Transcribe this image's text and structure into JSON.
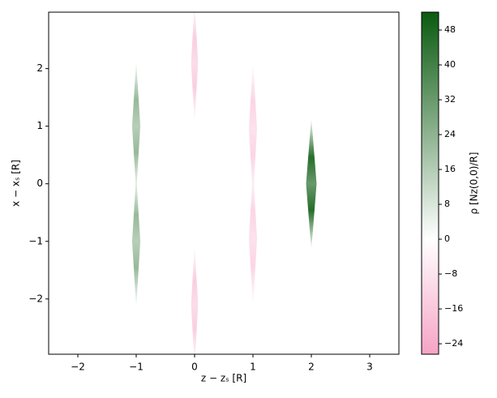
{
  "chart_data": {
    "type": "heatmap",
    "x_label": "z − zₛ [R]",
    "y_label": "x − xₛ [R]",
    "colorbar_label": "ρ [Nz(0,0)/R]",
    "xlim": [
      -2.5,
      3.5
    ],
    "ylim": [
      -2.96,
      2.98
    ],
    "xticks": [
      {
        "value": -2,
        "label": "−2"
      },
      {
        "value": -1,
        "label": "−1"
      },
      0,
      1,
      2,
      3
    ],
    "yticks": [
      {
        "value": -2,
        "label": "−2"
      },
      {
        "value": -1,
        "label": "−1"
      },
      0,
      1,
      2
    ],
    "clim": [
      -26.4,
      52.1
    ],
    "cticks": [
      {
        "value": -24,
        "label": "−24"
      },
      {
        "value": -16,
        "label": "−16"
      },
      {
        "value": -8,
        "label": "−8"
      },
      0,
      8,
      16,
      24,
      32,
      40,
      48
    ],
    "colormap": [
      "#f6a3c5",
      "#ffffff",
      "#0a5a0f"
    ],
    "blobs": [
      {
        "z": -1,
        "x": 1,
        "half_height": 1.15,
        "half_width": 0.07,
        "value": 22
      },
      {
        "z": -1,
        "x": -1,
        "half_height": 1.15,
        "half_width": 0.07,
        "value": 22
      },
      {
        "z": 0,
        "x": 2.1,
        "half_height": 1.05,
        "half_width": 0.06,
        "value": -14
      },
      {
        "z": 0,
        "x": -2.1,
        "half_height": 1.05,
        "half_width": 0.06,
        "value": -14
      },
      {
        "z": 1,
        "x": 0.95,
        "half_height": 1.2,
        "half_width": 0.07,
        "value": -12
      },
      {
        "z": 1,
        "x": -0.95,
        "half_height": 1.2,
        "half_width": 0.07,
        "value": -12
      },
      {
        "z": 2,
        "x": 0,
        "half_height": 1.15,
        "half_width": 0.09,
        "value": 46
      }
    ]
  }
}
